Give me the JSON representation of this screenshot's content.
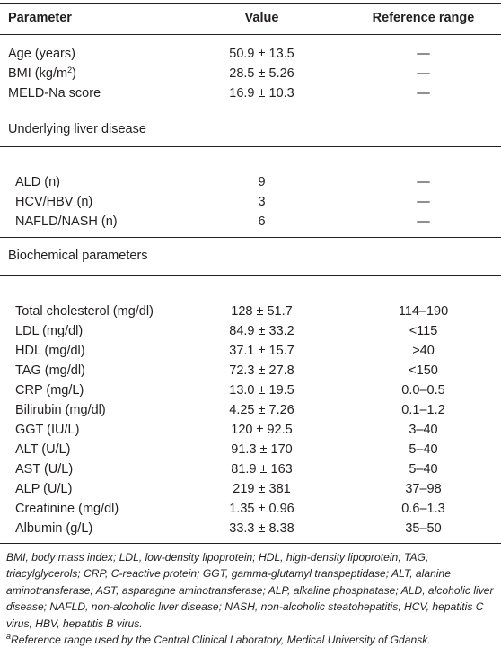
{
  "table": {
    "headers": [
      "Parameter",
      "Value",
      "Reference range"
    ],
    "rows_general": [
      {
        "parameter": "Age (years)",
        "value": "50.9 ± 13.5",
        "reference": "—"
      },
      {
        "parameter": "BMI (kg/m",
        "parameter_sup": "2",
        "parameter_tail": ")",
        "value": "28.5 ± 5.26",
        "reference": "—"
      },
      {
        "parameter": "MELD-Na score",
        "value": "16.9 ± 10.3",
        "reference": "—"
      }
    ],
    "section_liver": "Underlying liver disease",
    "rows_liver": [
      {
        "parameter": "ALD (n)",
        "value": "9",
        "reference": "—"
      },
      {
        "parameter": "HCV/HBV (n)",
        "value": "3",
        "reference": "—"
      },
      {
        "parameter": "NAFLD/NASH (n)",
        "value": "6",
        "reference": "—"
      }
    ],
    "section_biochem": "Biochemical parameters",
    "rows_biochem": [
      {
        "parameter": "Total cholesterol (mg/dl)",
        "value": "128 ± 51.7",
        "reference": "114–190"
      },
      {
        "parameter": "LDL (mg/dl)",
        "value": "84.9 ± 33.2",
        "reference": "<115"
      },
      {
        "parameter": "HDL (mg/dl)",
        "value": "37.1 ± 15.7",
        "reference": ">40"
      },
      {
        "parameter": "TAG (mg/dl)",
        "value": "72.3 ± 27.8",
        "reference": "<150"
      },
      {
        "parameter": "CRP (mg/L)",
        "value": "13.0 ± 19.5",
        "reference": "0.0–0.5"
      },
      {
        "parameter": "Bilirubin (mg/dl)",
        "value": "4.25 ± 7.26",
        "reference": "0.1–1.2"
      },
      {
        "parameter": "GGT (IU/L)",
        "value": "120 ± 92.5",
        "reference": "3–40"
      },
      {
        "parameter": "ALT (U/L)",
        "value": "91.3 ± 170",
        "reference": "5–40"
      },
      {
        "parameter": "AST (U/L)",
        "value": "81.9 ± 163",
        "reference": "5–40"
      },
      {
        "parameter": "ALP (U/L)",
        "value": "219 ± 381",
        "reference": "37–98"
      },
      {
        "parameter": "Creatinine (mg/dl)",
        "value": "1.35 ± 0.96",
        "reference": "0.6–1.3"
      },
      {
        "parameter": "Albumin (g/L)",
        "value": "33.3 ± 8.38",
        "reference": "35–50"
      }
    ]
  },
  "footnotes": {
    "abbreviations": "BMI, body mass index; LDL, low-density lipoprotein; HDL, high-density lipoprotein; TAG, triacylglycerols; CRP, C-reactive protein; GGT, gamma-glutamyl transpeptidase; ALT, alanine aminotransferase; AST, asparagine aminotransferase; ALP, alkaline phosphatase; ALD, alcoholic liver disease; NAFLD, non-alcoholic liver disease; NASH, non-alcoholic steatohepatitis; HCV, hepatitis C virus, HBV, hepatitis B virus.",
    "reference_mark": "a",
    "reference_note": "Reference range used by the Central Clinical Laboratory, Medical University of Gdansk."
  }
}
